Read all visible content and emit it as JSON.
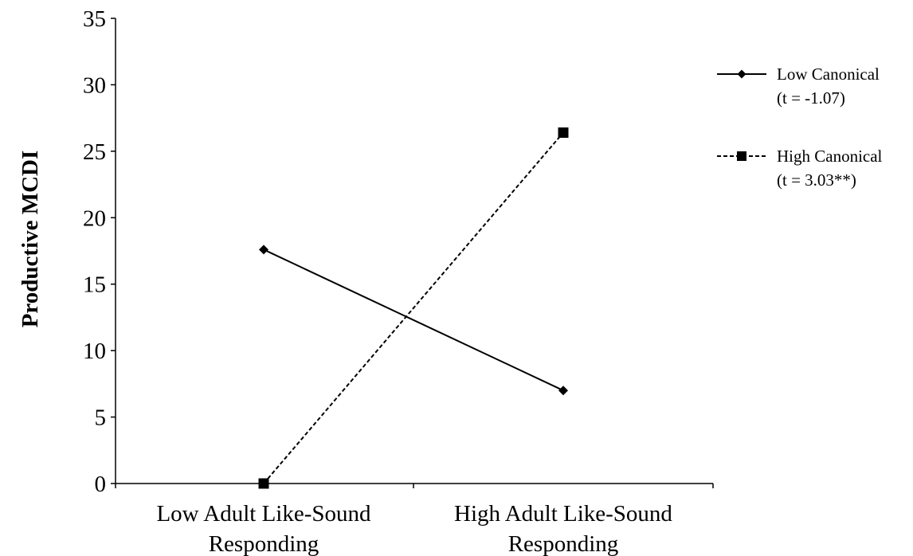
{
  "chart_data": {
    "type": "line",
    "title": "",
    "xlabel": "",
    "ylabel": "Productive MCDI",
    "ylim": [
      0,
      35
    ],
    "yticks": [
      "0",
      "5",
      "10",
      "15",
      "20",
      "25",
      "30",
      "35"
    ],
    "categories": [
      [
        "Low Adult Like-Sound",
        "Responding"
      ],
      [
        "High Adult Like-Sound",
        "Responding"
      ]
    ],
    "grid": false,
    "legend_position": "top-right",
    "series": [
      {
        "name": "Low Canonical",
        "stat": "(t = -1.07)",
        "values": [
          17.6,
          7.0
        ],
        "marker": "diamond",
        "line_style": "solid",
        "color": "#000000"
      },
      {
        "name": "High Canonical",
        "stat": "(t = 3.03**)",
        "values": [
          0.0,
          26.4
        ],
        "marker": "square",
        "line_style": "dashed",
        "color": "#000000"
      }
    ]
  }
}
